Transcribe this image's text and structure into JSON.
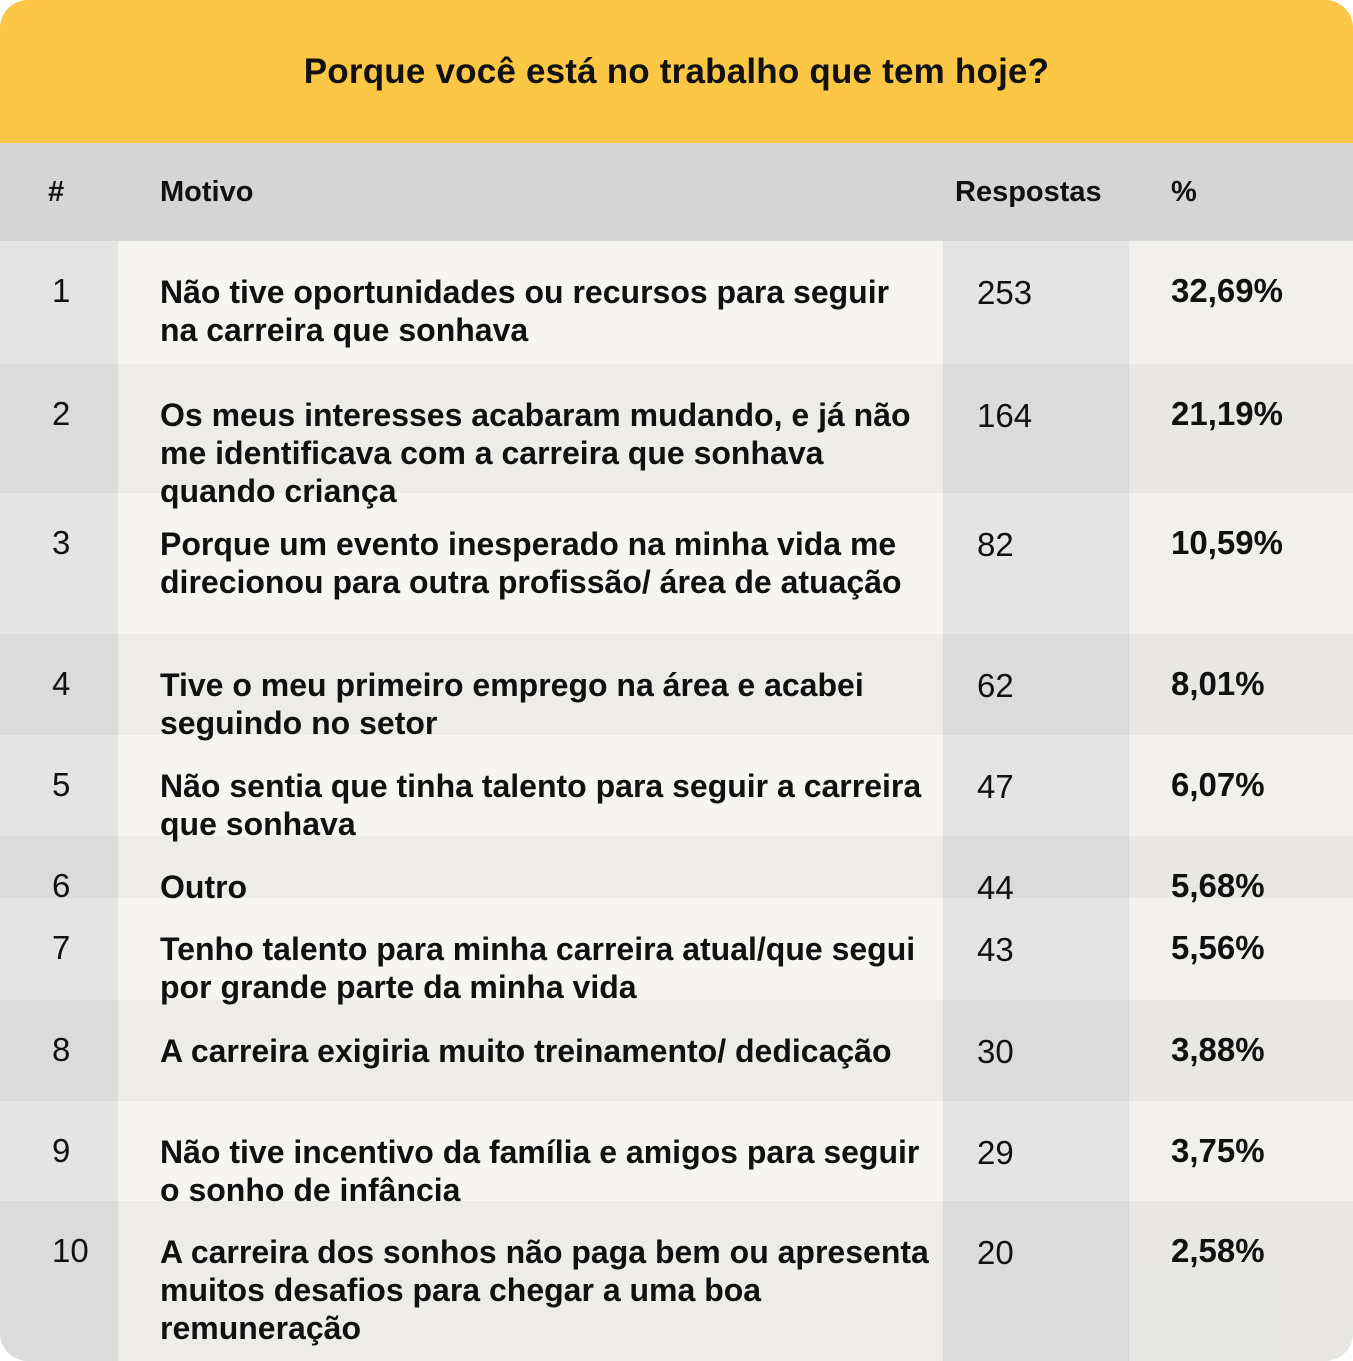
{
  "title": "Porque você está no trabalho que tem hoje?",
  "colors": {
    "banner": "#fbc744",
    "header": "#d5d5d5"
  },
  "chart_data": {
    "type": "table",
    "title": "Porque você está no trabalho que tem hoje?",
    "columns": [
      "#",
      "Motivo",
      "Respostas",
      "%"
    ],
    "rows": [
      {
        "num": "1",
        "motivo": "Não tive oportunidades ou recursos para seguir na carreira que sonhava",
        "respostas": "253",
        "pct": "32,69%"
      },
      {
        "num": "2",
        "motivo": "Os meus interesses acabaram mudando, e já não me identificava com a carreira que sonhava quando criança",
        "respostas": "164",
        "pct": "21,19%"
      },
      {
        "num": "3",
        "motivo": "Porque um evento inesperado na minha vida me direcionou para outra profissão/ área de atuação",
        "respostas": "82",
        "pct": "10,59%"
      },
      {
        "num": "4",
        "motivo": "Tive o meu primeiro emprego na área e acabei seguindo no setor",
        "respostas": "62",
        "pct": "8,01%"
      },
      {
        "num": "5",
        "motivo": "Não sentia que tinha talento para seguir a carreira que sonhava",
        "respostas": "47",
        "pct": "6,07%"
      },
      {
        "num": "6",
        "motivo": "Outro",
        "respostas": "44",
        "pct": "5,68%"
      },
      {
        "num": "7",
        "motivo": "Tenho talento para minha carreira atual/que segui por grande parte da minha vida",
        "respostas": "43",
        "pct": "5,56%"
      },
      {
        "num": "8",
        "motivo": "A carreira exigiria muito treinamento/ dedicação",
        "respostas": "30",
        "pct": "3,88%"
      },
      {
        "num": "9",
        "motivo": "Não tive incentivo da família e amigos para seguir o sonho de infância",
        "respostas": "29",
        "pct": "3,75%"
      },
      {
        "num": "10",
        "motivo": "A carreira dos sonhos não paga bem ou apresenta muitos desafios para chegar a uma boa remuneração",
        "respostas": "20",
        "pct": "2,58%"
      }
    ]
  }
}
